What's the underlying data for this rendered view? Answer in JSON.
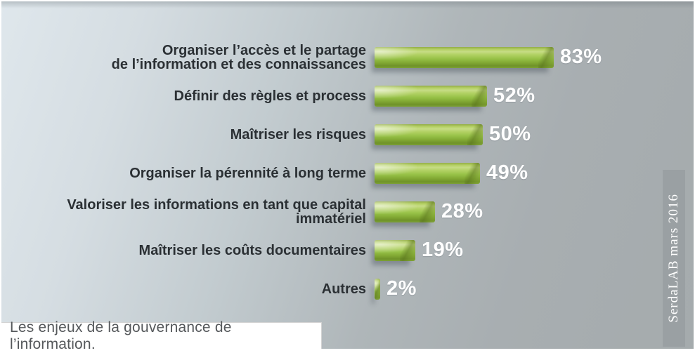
{
  "chart_data": {
    "type": "bar",
    "orientation": "horizontal",
    "title": "Les enjeux de la gouvernance de l’information.",
    "source": "SerdaLAB mars 2016",
    "categories": [
      "Organiser l’accès et le partage\nde l’information et des connaissances",
      "Définir des règles et process",
      "Maîtriser les risques",
      "Organiser la pérennité à long terme",
      "Valoriser les informations en tant que capital immatériel",
      "Maîtriser les coûts documentaires",
      "Autres"
    ],
    "values": [
      83,
      52,
      50,
      49,
      28,
      19,
      2
    ],
    "value_labels": [
      "83%",
      "52%",
      "50%",
      "49%",
      "28%",
      "19%",
      "2%"
    ],
    "xlim": [
      0,
      100
    ],
    "grid": false,
    "legend": false,
    "bar_color": "#8fba3c",
    "bar_highlight": "#c6dc85",
    "bar_dark_edge": "#6f9229",
    "value_label_color": "#ffffff",
    "category_label_color": "#2b3034",
    "background_top_left": "#dfe7ec",
    "background_right": "#a5abad"
  },
  "caption": {
    "text": "Les enjeux de la gouvernance de l’information."
  },
  "source": {
    "text": "SerdaLAB mars 2016",
    "badge_color": "#9aa0a3"
  }
}
